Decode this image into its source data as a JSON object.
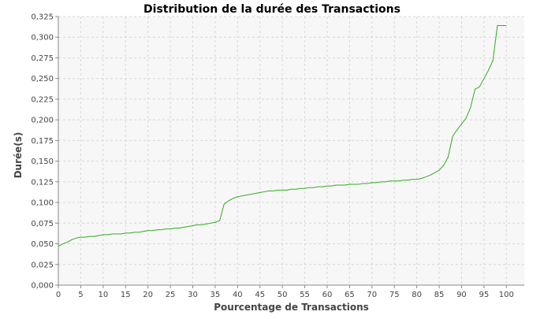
{
  "chart_data": {
    "type": "line",
    "title": "Distribution de la durée des Transactions",
    "xlabel": "Pourcentage de Transactions",
    "ylabel": "Durée(s)",
    "xlim": [
      0,
      104
    ],
    "ylim": [
      0,
      0.325
    ],
    "x_ticks": [
      0,
      5,
      10,
      15,
      20,
      25,
      30,
      35,
      40,
      45,
      50,
      55,
      60,
      65,
      70,
      75,
      80,
      85,
      90,
      95,
      100
    ],
    "x_tick_labels": [
      "0",
      "5",
      "10",
      "15",
      "20",
      "25",
      "30",
      "35",
      "40",
      "45",
      "50",
      "55",
      "60",
      "65",
      "70",
      "75",
      "80",
      "85",
      "90",
      "95",
      "100"
    ],
    "y_ticks": [
      0,
      0.025,
      0.05,
      0.075,
      0.1,
      0.125,
      0.15,
      0.175,
      0.2,
      0.225,
      0.25,
      0.275,
      0.3,
      0.325
    ],
    "y_tick_labels": [
      "0,000",
      "0,025",
      "0,050",
      "0,075",
      "0,100",
      "0,125",
      "0,150",
      "0,175",
      "0,200",
      "0,225",
      "0,250",
      "0,275",
      "0,300",
      "0,325"
    ],
    "grid": true,
    "plot_background": "#f7f7f7",
    "series": [
      {
        "color": "#33aa22",
        "x": [
          0,
          1,
          2,
          3,
          4,
          5,
          6,
          7,
          8,
          9,
          10,
          11,
          12,
          13,
          14,
          15,
          16,
          17,
          18,
          19,
          20,
          21,
          22,
          23,
          24,
          25,
          26,
          27,
          28,
          29,
          30,
          31,
          32,
          33,
          34,
          35,
          36,
          37,
          38,
          39,
          40,
          41,
          42,
          43,
          44,
          45,
          46,
          47,
          48,
          49,
          50,
          51,
          52,
          53,
          54,
          55,
          56,
          57,
          58,
          59,
          60,
          61,
          62,
          63,
          64,
          65,
          66,
          67,
          68,
          69,
          70,
          71,
          72,
          73,
          74,
          75,
          76,
          77,
          78,
          79,
          80,
          81,
          82,
          83,
          84,
          85,
          86,
          87,
          88,
          89,
          90,
          91,
          92,
          93,
          94,
          95,
          96,
          97,
          98,
          99,
          100
        ],
        "y": [
          0.047,
          0.05,
          0.052,
          0.055,
          0.057,
          0.058,
          0.058,
          0.059,
          0.059,
          0.06,
          0.061,
          0.061,
          0.062,
          0.062,
          0.062,
          0.063,
          0.063,
          0.064,
          0.064,
          0.065,
          0.066,
          0.066,
          0.067,
          0.067,
          0.068,
          0.068,
          0.069,
          0.069,
          0.07,
          0.071,
          0.072,
          0.073,
          0.073,
          0.074,
          0.075,
          0.076,
          0.078,
          0.098,
          0.102,
          0.105,
          0.107,
          0.108,
          0.109,
          0.11,
          0.111,
          0.112,
          0.113,
          0.114,
          0.114,
          0.115,
          0.115,
          0.115,
          0.116,
          0.116,
          0.117,
          0.117,
          0.118,
          0.118,
          0.119,
          0.119,
          0.12,
          0.12,
          0.121,
          0.121,
          0.121,
          0.122,
          0.122,
          0.122,
          0.123,
          0.123,
          0.124,
          0.124,
          0.125,
          0.125,
          0.126,
          0.126,
          0.126,
          0.127,
          0.127,
          0.128,
          0.128,
          0.129,
          0.131,
          0.133,
          0.136,
          0.139,
          0.145,
          0.155,
          0.18,
          0.188,
          0.195,
          0.202,
          0.215,
          0.237,
          0.24,
          0.25,
          0.26,
          0.272,
          0.314,
          0.314,
          0.314
        ]
      }
    ]
  }
}
